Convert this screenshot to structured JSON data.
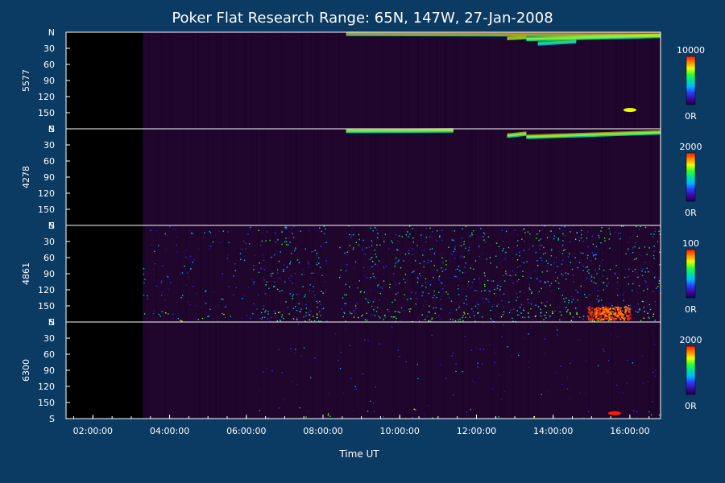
{
  "colors": {
    "background": "#0b3a63",
    "panel_background": "#000000",
    "panel_noise": "#3a0a52",
    "axis": "#ffffff",
    "colormap": [
      "#1b004a",
      "#3a0aa0",
      "#2a3cff",
      "#00b8ff",
      "#00e0a0",
      "#30ff30",
      "#e8ff00",
      "#ff8a00",
      "#ff1a00"
    ]
  },
  "chart_data": {
    "type": "heatmap",
    "title": "Poker Flat Research Range: 65N, 147W, 27-Jan-2008",
    "xlabel": "Time UT",
    "x_tick_labels": [
      "02:00:00",
      "04:00:00",
      "06:00:00",
      "08:00:00",
      "10:00:00",
      "12:00:00",
      "14:00:00",
      "16:00:00"
    ],
    "x_tick_hours": [
      2,
      4,
      6,
      8,
      10,
      12,
      14,
      16
    ],
    "xlim_hours": [
      1.3,
      16.8
    ],
    "data_start_hour": 3.3,
    "y_tick_labels": [
      "N",
      "30",
      "60",
      "90",
      "120",
      "150",
      "S"
    ],
    "ylim": [
      0,
      180
    ],
    "panels": [
      {
        "name": "5577",
        "colorbar_max_label": "10000",
        "colorbar_min_label": "0R",
        "features": [
          {
            "kind": "band",
            "t_start": 8.6,
            "t_end": 16.8,
            "angle_start": 4,
            "angle_end": 6,
            "level": 0.55
          },
          {
            "kind": "band",
            "t_start": 12.8,
            "t_end": 13.3,
            "angle_start": 12,
            "angle_end": 10,
            "level": 0.6
          },
          {
            "kind": "band",
            "t_start": 13.3,
            "t_end": 16.8,
            "angle_start": 14,
            "angle_end": 8,
            "level": 0.5
          },
          {
            "kind": "band",
            "t_start": 13.6,
            "t_end": 14.6,
            "angle_start": 22,
            "angle_end": 18,
            "level": 0.35
          },
          {
            "kind": "spot",
            "t": 16.0,
            "angle": 145,
            "level": 0.7
          }
        ]
      },
      {
        "name": "4278",
        "colorbar_max_label": "2000",
        "colorbar_min_label": "0R",
        "features": [
          {
            "kind": "band",
            "t_start": 8.6,
            "t_end": 11.4,
            "angle_start": 5,
            "angle_end": 4,
            "level": 0.45
          },
          {
            "kind": "band",
            "t_start": 12.8,
            "t_end": 13.3,
            "angle_start": 14,
            "angle_end": 10,
            "level": 0.5
          },
          {
            "kind": "band",
            "t_start": 13.3,
            "t_end": 16.8,
            "angle_start": 16,
            "angle_end": 8,
            "level": 0.45
          }
        ]
      },
      {
        "name": "4861",
        "colorbar_max_label": "100",
        "colorbar_min_label": "0R",
        "features": [
          {
            "kind": "noise",
            "t_start": 3.3,
            "t_end": 6.3,
            "level": 0.15
          },
          {
            "kind": "noise",
            "t_start": 6.3,
            "t_end": 8.1,
            "level": 0.35
          },
          {
            "kind": "noise",
            "t_start": 8.4,
            "t_end": 16.8,
            "level": 0.35
          },
          {
            "kind": "blob",
            "t_start": 14.9,
            "t_end": 16.0,
            "angle_start": 150,
            "angle_end": 175,
            "level": 1.0
          }
        ]
      },
      {
        "name": "6300",
        "colorbar_max_label": "2000",
        "colorbar_min_label": "0R",
        "features": [
          {
            "kind": "noise",
            "t_start": 6.3,
            "t_end": 16.8,
            "level": 0.05
          },
          {
            "kind": "spot",
            "t": 15.6,
            "angle": 170,
            "level": 1.0
          }
        ]
      }
    ]
  }
}
